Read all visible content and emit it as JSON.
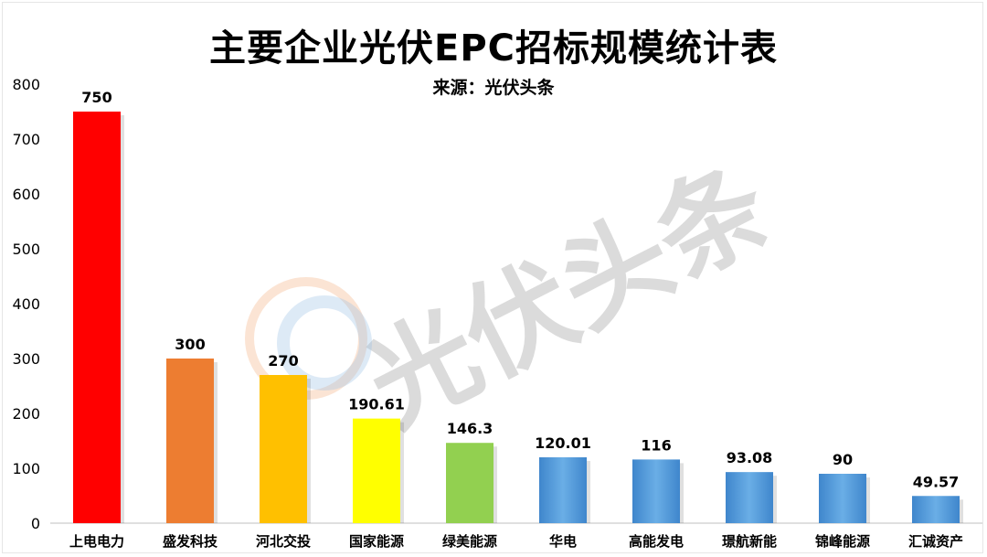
{
  "chart_data": {
    "type": "bar",
    "title": "主要企业光伏EPC招标规模统计表",
    "subtitle": "来源：光伏头条",
    "categories": [
      "上电电力",
      "盛发科技",
      "河北交投",
      "国家能源",
      "绿美能源",
      "华电",
      "高能发电",
      "璟航新能",
      "锦峰能源",
      "汇诚资产"
    ],
    "values": [
      750,
      300,
      270,
      190.61,
      146.3,
      120.01,
      116,
      93.08,
      90,
      49.57
    ],
    "value_labels": [
      "750",
      "300",
      "270",
      "190.61",
      "146.3",
      "120.01",
      "116",
      "93.08",
      "90",
      "49.57"
    ],
    "bar_colors": [
      "#ff0000",
      "#ed7d31",
      "#ffc000",
      "#ffff00",
      "#92d050",
      "#5b9bd5",
      "#5b9bd5",
      "#5b9bd5",
      "#5b9bd5",
      "#5b9bd5"
    ],
    "ylim": [
      0,
      800
    ],
    "yticks": [
      0,
      100,
      200,
      300,
      400,
      500,
      600,
      700,
      800
    ],
    "grid": false,
    "xlabel": "",
    "ylabel": ""
  },
  "watermark": {
    "text": "光伏头条"
  }
}
